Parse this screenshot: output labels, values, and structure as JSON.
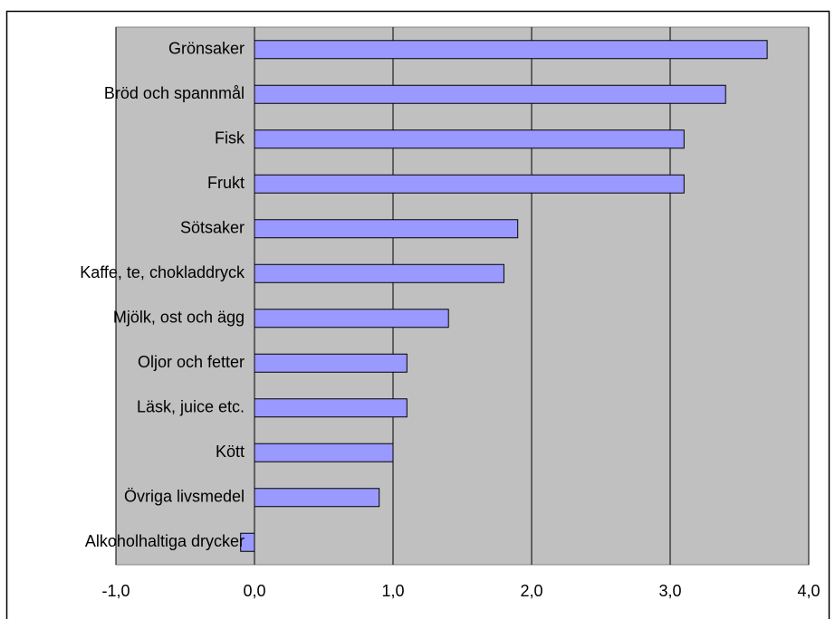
{
  "chart_data": {
    "type": "bar",
    "orientation": "horizontal",
    "categories": [
      "Grönsaker",
      "Bröd och spannmål",
      "Fisk",
      "Frukt",
      "Sötsaker",
      "Kaffe, te, chokladdryck",
      "Mjölk, ost och ägg",
      "Oljor och fetter",
      "Läsk, juice etc.",
      "Kött",
      "Övriga livsmedel",
      "Alkoholhaltiga drycker"
    ],
    "values": [
      3.7,
      3.4,
      3.1,
      3.1,
      1.9,
      1.8,
      1.4,
      1.1,
      1.1,
      1.0,
      0.9,
      -0.1
    ],
    "color": "#9999ff",
    "xlim": [
      -1,
      4
    ],
    "xticks": [
      {
        "value": -1,
        "label": "-1,0"
      },
      {
        "value": 0,
        "label": "0,0"
      },
      {
        "value": 1,
        "label": "1,0"
      },
      {
        "value": 2,
        "label": "2,0"
      },
      {
        "value": 3,
        "label": "3,0"
      },
      {
        "value": 4,
        "label": "4,0"
      }
    ],
    "grid": true
  }
}
